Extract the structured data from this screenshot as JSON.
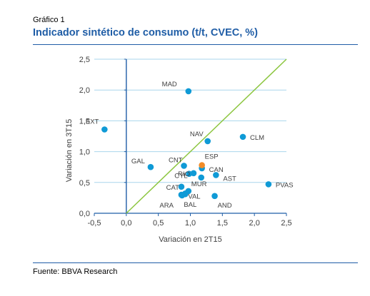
{
  "header": {
    "figure_number": "Gráfico 1",
    "title": "Indicador sintético de consumo (t/t, CVEC, %)"
  },
  "footer": {
    "source": "Fuente: BBVA Research"
  },
  "colors": {
    "title": "#1f5da6",
    "grid": "#a9d6ec",
    "axis": "#1f5da6",
    "point": "#0f9ad6",
    "highlight": "#f28c28",
    "diagonal": "#8cc63f",
    "text": "#404040"
  },
  "chart_data": {
    "type": "scatter",
    "title": "Indicador sintético de consumo (t/t, CVEC, %)",
    "xlabel": "Variación en 2T15",
    "ylabel": "Variación en 3T15",
    "xlim": [
      -0.5,
      2.5
    ],
    "ylim": [
      0.0,
      2.5
    ],
    "x_ticks": [
      "-0,5",
      "0,0",
      "0,5",
      "1,0",
      "1,5",
      "2,0",
      "2,5"
    ],
    "y_ticks": [
      "0,0",
      "0,5",
      "1,0",
      "1,5",
      "2,0",
      "2,5"
    ],
    "grid": "horizontal",
    "reference_line": "y = x",
    "points": [
      {
        "label": "MAD",
        "x": 0.97,
        "y": 1.98
      },
      {
        "label": "EXT",
        "x": -0.34,
        "y": 1.36
      },
      {
        "label": "NAV",
        "x": 1.27,
        "y": 1.17
      },
      {
        "label": "CLM",
        "x": 1.82,
        "y": 1.24
      },
      {
        "label": "GAL",
        "x": 0.38,
        "y": 0.75
      },
      {
        "label": "CNT",
        "x": 0.9,
        "y": 0.77
      },
      {
        "label": "ESP",
        "x": 1.18,
        "y": 0.78,
        "highlight": true
      },
      {
        "label": "RIO",
        "x": 1.05,
        "y": 0.65
      },
      {
        "label": "CAN",
        "x": 1.18,
        "y": 0.73
      },
      {
        "label": "CYL",
        "x": 0.98,
        "y": 0.64
      },
      {
        "label": "AST",
        "x": 1.4,
        "y": 0.62
      },
      {
        "label": "",
        "x": 1.17,
        "y": 0.58
      },
      {
        "label": "PVAS",
        "x": 2.22,
        "y": 0.47
      },
      {
        "label": "CAT",
        "x": 0.86,
        "y": 0.43
      },
      {
        "label": "MUR",
        "x": 0.97,
        "y": 0.36
      },
      {
        "label": "VAL",
        "x": 0.92,
        "y": 0.32
      },
      {
        "label": "",
        "x": 0.87,
        "y": 0.29
      },
      {
        "label": "ARA",
        "x": 0.86,
        "y": 0.3
      },
      {
        "label": "BAL",
        "x": 0.92,
        "y": 0.31
      },
      {
        "label": "AND",
        "x": 1.38,
        "y": 0.28
      }
    ]
  }
}
